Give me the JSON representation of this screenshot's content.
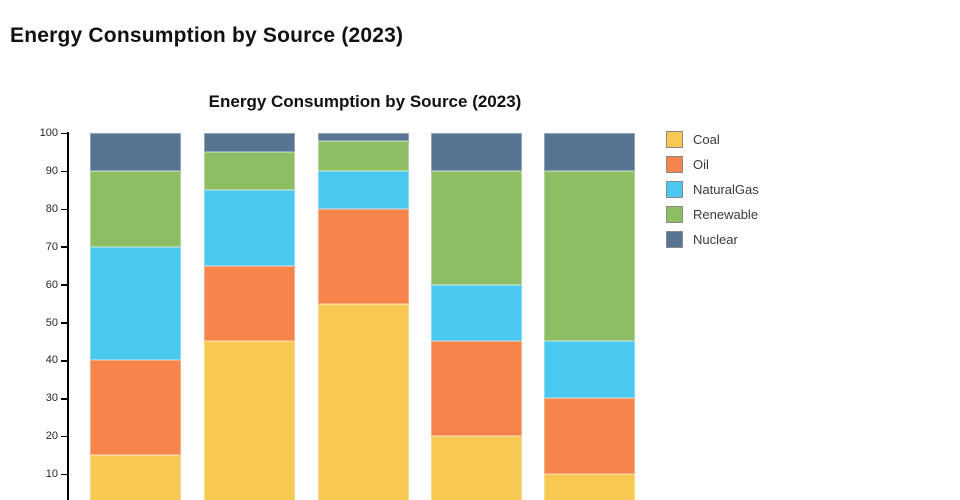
{
  "page": {
    "title": "Energy Consumption by Source (2023)"
  },
  "chart_data": {
    "type": "bar",
    "stacked": true,
    "title": "Energy Consumption by Source (2023)",
    "categories": [
      "",
      "",
      "",
      "",
      ""
    ],
    "series": [
      {
        "name": "Coal",
        "color": "#F7C852",
        "values": [
          15,
          45,
          55,
          20,
          10
        ]
      },
      {
        "name": "Oil",
        "color": "#F5854B",
        "values": [
          25,
          20,
          25,
          25,
          20
        ]
      },
      {
        "name": "NaturalGas",
        "color": "#4AC8F0",
        "values": [
          30,
          20,
          10,
          15,
          15
        ]
      },
      {
        "name": "Renewable",
        "color": "#8DBE63",
        "values": [
          20,
          10,
          8,
          30,
          45
        ]
      },
      {
        "name": "Nuclear",
        "color": "#577492",
        "values": [
          10,
          5,
          2,
          10,
          10
        ]
      }
    ],
    "ylim": [
      0,
      100
    ],
    "yticks": [
      10,
      20,
      30,
      40,
      50,
      60,
      70,
      80,
      90,
      100
    ],
    "legend_position": "right",
    "axis_color": "#000000",
    "background_color": "#ffffff"
  }
}
